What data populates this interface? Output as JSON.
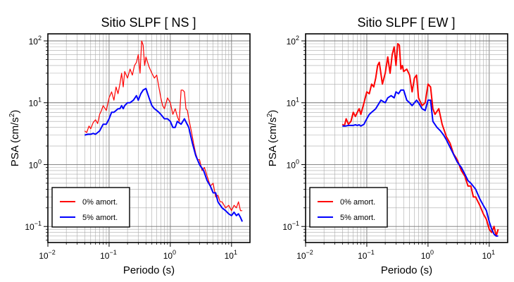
{
  "chart_data": [
    {
      "type": "line",
      "title": "Sitio SLPF [ NS ]",
      "xlabel": "Periodo (s)",
      "ylabel": "PSA (cm/s²)",
      "xscale": "log",
      "yscale": "log",
      "xlim": [
        0.01,
        20
      ],
      "ylim": [
        0.055,
        130
      ],
      "grid": true,
      "legend_position": "bottom-left",
      "x_ticks": [
        {
          "base": "10",
          "exp": "−2"
        },
        {
          "base": "10",
          "exp": "−1"
        },
        {
          "base": "10",
          "exp": "0"
        },
        {
          "base": "10",
          "exp": "1"
        }
      ],
      "y_ticks": [
        {
          "base": "10",
          "exp": "−1"
        },
        {
          "base": "10",
          "exp": "0"
        },
        {
          "base": "10",
          "exp": "1"
        },
        {
          "base": "10",
          "exp": "2"
        }
      ],
      "ylabel_parts": {
        "main": "PSA (cm/s",
        "sup": "2",
        "end": ")"
      },
      "series": [
        {
          "name": "0% amort.",
          "color": "#ff0000",
          "x": [
            0.04,
            0.043,
            0.047,
            0.05,
            0.055,
            0.06,
            0.065,
            0.07,
            0.075,
            0.08,
            0.09,
            0.1,
            0.11,
            0.12,
            0.13,
            0.14,
            0.15,
            0.16,
            0.17,
            0.18,
            0.2,
            0.22,
            0.24,
            0.26,
            0.28,
            0.3,
            0.32,
            0.34,
            0.36,
            0.38,
            0.4,
            0.45,
            0.5,
            0.55,
            0.6,
            0.65,
            0.7,
            0.75,
            0.8,
            0.9,
            1.0,
            1.1,
            1.2,
            1.3,
            1.4,
            1.5,
            1.6,
            1.7,
            1.8,
            1.9,
            2.0,
            2.2,
            2.4,
            2.6,
            2.8,
            3.0,
            3.3,
            3.6,
            4.0,
            4.5,
            5.0,
            5.5,
            6.0,
            6.5,
            7.0,
            8.0,
            9.0,
            10.0,
            11.0,
            12.0,
            13.0,
            14.0,
            15.0
          ],
          "values": [
            3.5,
            3.3,
            4.2,
            3.8,
            4.8,
            5.3,
            4.6,
            6.5,
            7.5,
            9.0,
            7.5,
            12.0,
            15.0,
            11.0,
            18.0,
            14.0,
            20.0,
            30.0,
            18.0,
            32.0,
            25.0,
            35.0,
            28.0,
            40.0,
            45.0,
            60.0,
            30.0,
            100.0,
            85.0,
            40.0,
            55.0,
            38.0,
            30.0,
            25.0,
            28.0,
            18.0,
            12.0,
            9.0,
            8.0,
            12.0,
            10.0,
            6.5,
            8.0,
            6.0,
            5.0,
            16.0,
            16.0,
            15.0,
            8.0,
            7.5,
            5.5,
            3.5,
            2.2,
            1.5,
            1.2,
            1.2,
            0.8,
            0.9,
            0.65,
            0.45,
            0.5,
            0.3,
            0.32,
            0.25,
            0.25,
            0.2,
            0.22,
            0.18,
            0.22,
            0.2,
            0.25,
            0.18,
            0.18
          ]
        },
        {
          "name": "5% amort.",
          "color": "#0000ff",
          "x": [
            0.04,
            0.045,
            0.05,
            0.055,
            0.06,
            0.065,
            0.07,
            0.08,
            0.09,
            0.1,
            0.11,
            0.12,
            0.13,
            0.14,
            0.15,
            0.16,
            0.17,
            0.18,
            0.2,
            0.22,
            0.25,
            0.28,
            0.3,
            0.33,
            0.36,
            0.4,
            0.45,
            0.5,
            0.55,
            0.6,
            0.65,
            0.7,
            0.8,
            0.9,
            1.0,
            1.1,
            1.2,
            1.3,
            1.5,
            1.7,
            2.0,
            2.3,
            2.6,
            3.0,
            3.5,
            4.0,
            4.5,
            5.0,
            5.5,
            6.0,
            7.0,
            8.0,
            9.0,
            10.0,
            11.0,
            12.0,
            13.0,
            14.0,
            15.0
          ],
          "values": [
            3.0,
            3.1,
            3.1,
            3.2,
            3.1,
            3.3,
            3.5,
            4.5,
            4.5,
            5.5,
            7.0,
            7.0,
            7.5,
            8.0,
            8.0,
            9.0,
            8.0,
            9.0,
            10.0,
            10.0,
            11.0,
            13.0,
            11.0,
            14.0,
            16.0,
            17.0,
            12.0,
            9.0,
            8.0,
            7.5,
            7.0,
            6.5,
            5.5,
            5.5,
            5.0,
            4.0,
            4.0,
            5.0,
            4.5,
            5.5,
            4.0,
            2.2,
            1.4,
            1.0,
            0.8,
            0.55,
            0.45,
            0.35,
            0.35,
            0.25,
            0.2,
            0.18,
            0.16,
            0.15,
            0.17,
            0.15,
            0.16,
            0.14,
            0.12
          ]
        }
      ]
    },
    {
      "type": "line",
      "title": "Sitio SLPF [ EW ]",
      "xlabel": "Periodo (s)",
      "ylabel": "PSA (cm/s²)",
      "xscale": "log",
      "yscale": "log",
      "xlim": [
        0.01,
        20
      ],
      "ylim": [
        0.055,
        130
      ],
      "grid": true,
      "legend_position": "bottom-left",
      "x_ticks": [
        {
          "base": "10",
          "exp": "−2"
        },
        {
          "base": "10",
          "exp": "−1"
        },
        {
          "base": "10",
          "exp": "0"
        },
        {
          "base": "10",
          "exp": "1"
        }
      ],
      "y_ticks": [
        {
          "base": "10",
          "exp": "−1"
        },
        {
          "base": "10",
          "exp": "0"
        },
        {
          "base": "10",
          "exp": "1"
        },
        {
          "base": "10",
          "exp": "2"
        }
      ],
      "ylabel_parts": {
        "main": "PSA (cm/s",
        "sup": "2",
        "end": ")"
      },
      "series": [
        {
          "name": "0% amort.",
          "color": "#ff0000",
          "x": [
            0.04,
            0.043,
            0.046,
            0.05,
            0.055,
            0.06,
            0.065,
            0.07,
            0.075,
            0.08,
            0.09,
            0.1,
            0.11,
            0.12,
            0.13,
            0.14,
            0.15,
            0.16,
            0.18,
            0.2,
            0.22,
            0.24,
            0.26,
            0.28,
            0.3,
            0.32,
            0.34,
            0.36,
            0.38,
            0.4,
            0.45,
            0.5,
            0.55,
            0.6,
            0.65,
            0.7,
            0.8,
            0.9,
            1.0,
            1.1,
            1.2,
            1.3,
            1.5,
            1.7,
            2.0,
            2.3,
            2.6,
            3.0,
            3.5,
            4.0,
            4.5,
            5.0,
            5.5,
            6.0,
            7.0,
            8.0,
            9.0,
            10.0,
            11.0,
            12.0,
            13.0,
            14.0
          ],
          "values": [
            4.5,
            4.2,
            5.5,
            4.5,
            5.0,
            7.0,
            6.0,
            7.0,
            8.0,
            6.5,
            10.0,
            15.0,
            14.0,
            20.0,
            18.0,
            25.0,
            40.0,
            45.0,
            20.0,
            30.0,
            55.0,
            30.0,
            60.0,
            80.0,
            40.0,
            90.0,
            85.0,
            35.0,
            40.0,
            32.0,
            35.0,
            28.0,
            15.0,
            25.0,
            28.0,
            12.0,
            9.0,
            10.0,
            20.0,
            18.0,
            8.0,
            6.5,
            8.0,
            4.5,
            2.8,
            2.2,
            1.5,
            1.2,
            0.8,
            0.65,
            0.45,
            0.45,
            0.3,
            0.3,
            0.22,
            0.16,
            0.13,
            0.09,
            0.08,
            0.1,
            0.07,
            0.09
          ]
        },
        {
          "name": "5% amort.",
          "color": "#0000ff",
          "x": [
            0.04,
            0.045,
            0.05,
            0.055,
            0.06,
            0.065,
            0.07,
            0.075,
            0.08,
            0.09,
            0.1,
            0.11,
            0.12,
            0.13,
            0.14,
            0.15,
            0.17,
            0.2,
            0.22,
            0.25,
            0.28,
            0.3,
            0.33,
            0.36,
            0.4,
            0.45,
            0.5,
            0.55,
            0.6,
            0.65,
            0.7,
            0.8,
            0.9,
            1.0,
            1.1,
            1.2,
            1.4,
            1.6,
            1.8,
            2.0,
            2.5,
            3.0,
            3.5,
            4.0,
            4.5,
            5.0,
            6.0,
            7.0,
            8.0,
            9.0,
            10.0,
            11.0,
            12.0,
            13.0,
            14.0
          ],
          "values": [
            4.2,
            4.2,
            4.3,
            4.3,
            4.3,
            4.4,
            4.3,
            4.4,
            4.2,
            4.5,
            5.5,
            6.5,
            7.0,
            7.5,
            8.0,
            9.0,
            11.0,
            10.0,
            12.0,
            13.0,
            12.0,
            15.0,
            14.0,
            16.0,
            16.0,
            11.0,
            10.0,
            9.0,
            10.0,
            11.0,
            10.0,
            8.0,
            7.5,
            11.0,
            11.0,
            5.0,
            4.0,
            3.5,
            3.0,
            2.5,
            1.6,
            1.1,
            0.9,
            0.7,
            0.55,
            0.5,
            0.4,
            0.28,
            0.22,
            0.18,
            0.12,
            0.09,
            0.075,
            0.07,
            0.07
          ]
        }
      ]
    }
  ]
}
